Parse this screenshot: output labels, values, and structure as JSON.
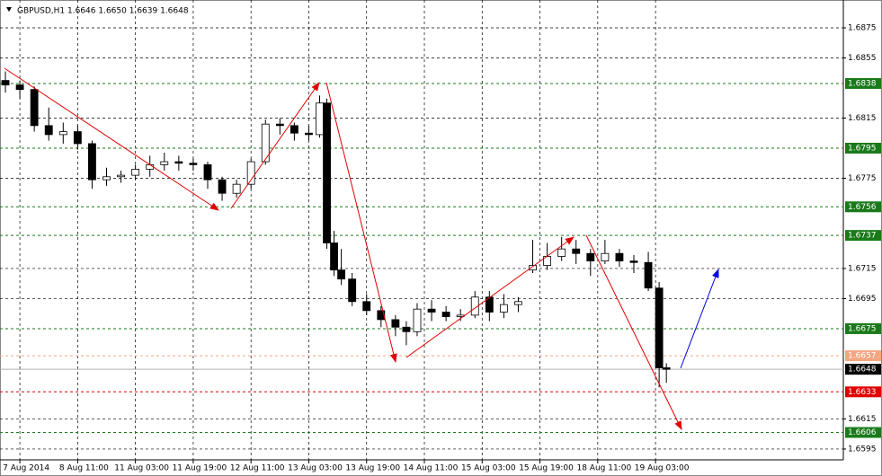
{
  "chart_data": {
    "type": "candlestick",
    "title": "GBPUSD,H1  1.6646 1.6650 1.6639 1.6648",
    "xlim": [
      -5.5,
      228
    ],
    "ylim": [
      1.65878,
      1.68935
    ],
    "xticks": [
      {
        "value": 0,
        "label": "7 Aug 2014"
      },
      {
        "value": 16,
        "label": "8 Aug 11:00"
      },
      {
        "value": 32,
        "label": "11 Aug 03:00"
      },
      {
        "value": 48,
        "label": "11 Aug 19:00"
      },
      {
        "value": 64,
        "label": "12 Aug 11:00"
      },
      {
        "value": 80,
        "label": "13 Aug 03:00"
      },
      {
        "value": 96,
        "label": "13 Aug 19:00"
      },
      {
        "value": 112,
        "label": "14 Aug 11:00"
      },
      {
        "value": 128,
        "label": "15 Aug 03:00"
      },
      {
        "value": 144,
        "label": "15 Aug 19:00"
      },
      {
        "value": 160,
        "label": "18 Aug 11:00"
      },
      {
        "value": 176,
        "label": "19 Aug 03:00"
      }
    ],
    "yticks": [
      1.6875,
      1.6855,
      1.6815,
      1.6775,
      1.6715,
      1.6695,
      1.6615,
      1.6595
    ],
    "grid": true,
    "levels": [
      {
        "value": 1.6838,
        "color": "#1a7a1a"
      },
      {
        "value": 1.6795,
        "color": "#1a7a1a"
      },
      {
        "value": 1.6756,
        "color": "#1a7a1a"
      },
      {
        "value": 1.6737,
        "color": "#1a7a1a"
      },
      {
        "value": 1.6675,
        "color": "#1a7a1a"
      },
      {
        "value": 1.6657,
        "color": "#f4a582"
      },
      {
        "value": 1.6648,
        "color": "#000000"
      },
      {
        "value": 1.6633,
        "color": "#e00000"
      },
      {
        "value": 1.6606,
        "color": "#1a7a1a"
      }
    ],
    "x": [
      -4,
      0,
      4,
      8,
      12,
      16,
      20,
      24,
      28,
      32,
      36,
      40,
      44,
      48,
      52,
      56,
      60,
      64,
      68,
      72,
      76,
      80,
      83,
      85,
      87,
      89,
      92,
      96,
      100,
      104,
      107,
      110,
      114,
      118,
      122,
      126,
      130,
      134,
      138,
      142,
      146,
      150,
      154,
      158,
      162,
      166,
      170,
      174,
      177,
      179
    ],
    "open": [
      1.684,
      1.6837,
      1.6834,
      1.681,
      1.6804,
      1.6806,
      1.6798,
      1.6774,
      1.6776,
      1.6777,
      1.6781,
      1.6784,
      1.6786,
      1.6785,
      1.6784,
      1.6774,
      1.6765,
      1.6771,
      1.6786,
      1.6811,
      1.681,
      1.6805,
      1.6804,
      1.6825,
      1.6732,
      1.6714,
      1.6708,
      1.6693,
      1.6687,
      1.6681,
      1.6676,
      1.6673,
      1.6688,
      1.6686,
      1.6683,
      1.6684,
      1.6696,
      1.6686,
      1.6691,
      1.6714,
      1.6717,
      1.6723,
      1.6728,
      1.6725,
      1.672,
      1.6725,
      1.672,
      1.6719,
      1.6702,
      1.6649
    ],
    "high": [
      1.6846,
      1.684,
      1.6836,
      1.6822,
      1.6812,
      1.681,
      1.68,
      1.6782,
      1.678,
      1.6784,
      1.679,
      1.6792,
      1.679,
      1.6788,
      1.6786,
      1.6776,
      1.6774,
      1.6788,
      1.6814,
      1.6815,
      1.6812,
      1.681,
      1.683,
      1.6828,
      1.674,
      1.6728,
      1.6712,
      1.6698,
      1.669,
      1.6684,
      1.668,
      1.6692,
      1.6694,
      1.669,
      1.6688,
      1.67,
      1.67,
      1.6698,
      1.6696,
      1.6734,
      1.6732,
      1.6736,
      1.6734,
      1.6728,
      1.6734,
      1.6728,
      1.6724,
      1.6726,
      1.6706,
      1.6652
    ],
    "low": [
      1.6832,
      1.6828,
      1.6806,
      1.68,
      1.6798,
      1.6794,
      1.6768,
      1.677,
      1.6772,
      1.6774,
      1.6776,
      1.678,
      1.678,
      1.678,
      1.6768,
      1.676,
      1.6762,
      1.6768,
      1.6784,
      1.6804,
      1.68,
      1.68,
      1.6802,
      1.6728,
      1.671,
      1.6704,
      1.669,
      1.6684,
      1.6676,
      1.667,
      1.6664,
      1.667,
      1.668,
      1.668,
      1.668,
      1.6682,
      1.668,
      1.6682,
      1.6686,
      1.6712,
      1.6714,
      1.672,
      1.6718,
      1.671,
      1.6718,
      1.6716,
      1.6712,
      1.67,
      1.6636,
      1.6639
    ],
    "close": [
      1.6837,
      1.6834,
      1.681,
      1.6804,
      1.6806,
      1.6798,
      1.6774,
      1.6776,
      1.6777,
      1.6781,
      1.6784,
      1.6786,
      1.6785,
      1.6784,
      1.6774,
      1.6765,
      1.6771,
      1.6786,
      1.6811,
      1.681,
      1.6805,
      1.6804,
      1.6825,
      1.6732,
      1.6714,
      1.6708,
      1.6693,
      1.6687,
      1.6681,
      1.6676,
      1.6673,
      1.6688,
      1.6686,
      1.6683,
      1.6684,
      1.6696,
      1.6686,
      1.6691,
      1.6693,
      1.6717,
      1.6723,
      1.6728,
      1.6725,
      1.672,
      1.6725,
      1.672,
      1.6719,
      1.6702,
      1.6649,
      1.6648
    ]
  }
}
